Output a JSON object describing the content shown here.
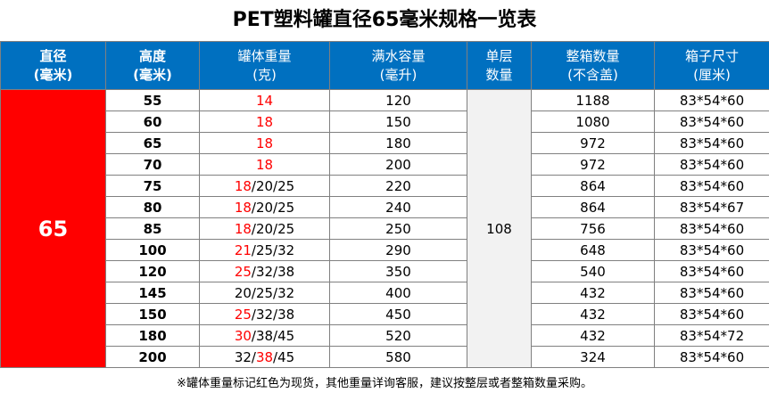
{
  "title": "PET塑料罐直径65毫米规格一览表",
  "headers": [
    {
      "line1": "直径",
      "line2": "(毫米)"
    },
    {
      "line1": "高度",
      "line2": "(毫米)"
    },
    {
      "line1": "罐体重量",
      "line2": "(克)"
    },
    {
      "line1": "满水容量",
      "line2": "(毫升)"
    },
    {
      "line1": "单层",
      "line2": "数量"
    },
    {
      "line1": "整箱数量",
      "line2": "(不含盖)"
    },
    {
      "line1": "箱子尺寸",
      "line2": "(厘米)"
    }
  ],
  "diameter": "65",
  "layer_count": "108",
  "rows": [
    {
      "height": "55",
      "weight_red": "14",
      "weight_rest": "",
      "capacity": "120",
      "case_qty": "1188",
      "box_size": "83*54*60"
    },
    {
      "height": "60",
      "weight_red": "18",
      "weight_rest": "",
      "capacity": "150",
      "case_qty": "1080",
      "box_size": "83*54*60"
    },
    {
      "height": "65",
      "weight_red": "18",
      "weight_rest": "",
      "capacity": "180",
      "case_qty": "972",
      "box_size": "83*54*60"
    },
    {
      "height": "70",
      "weight_red": "18",
      "weight_rest": "",
      "capacity": "200",
      "case_qty": "972",
      "box_size": "83*54*60"
    },
    {
      "height": "75",
      "weight_red": "18",
      "weight_rest": "/20/25",
      "capacity": "220",
      "case_qty": "864",
      "box_size": "83*54*60"
    },
    {
      "height": "80",
      "weight_red": "18",
      "weight_rest": "/20/25",
      "capacity": "240",
      "case_qty": "864",
      "box_size": "83*54*67"
    },
    {
      "height": "85",
      "weight_red": "18",
      "weight_rest": "/20/25",
      "capacity": "250",
      "case_qty": "756",
      "box_size": "83*54*60"
    },
    {
      "height": "100",
      "weight_red": "21",
      "weight_rest": "/25/32",
      "capacity": "290",
      "case_qty": "648",
      "box_size": "83*54*60"
    },
    {
      "height": "120",
      "weight_red": "25",
      "weight_rest": "/32/38",
      "capacity": "350",
      "case_qty": "540",
      "box_size": "83*54*60"
    },
    {
      "height": "145",
      "weight_pre": "20/25/32",
      "capacity": "400",
      "case_qty": "432",
      "box_size": "83*54*60"
    },
    {
      "height": "150",
      "weight_red": "25",
      "weight_rest": "/32/38",
      "capacity": "450",
      "case_qty": "432",
      "box_size": "83*54*60"
    },
    {
      "height": "180",
      "weight_red": "30",
      "weight_rest": "/38/45",
      "capacity": "520",
      "case_qty": "432",
      "box_size": "83*54*72"
    },
    {
      "height": "200",
      "weight_pre": "32/",
      "weight_red": "38",
      "weight_rest": "/45",
      "capacity": "580",
      "case_qty": "324",
      "box_size": "83*54*60"
    }
  ],
  "footnote": "※罐体重量标记红色为现货，其他重量详询客服，建议按整层或者整箱数量采购。",
  "colors": {
    "header_bg": "#0070c0",
    "diameter_bg": "#ff0000",
    "in_stock_text": "#ff0000",
    "layer_bg": "#f2f2f2"
  }
}
